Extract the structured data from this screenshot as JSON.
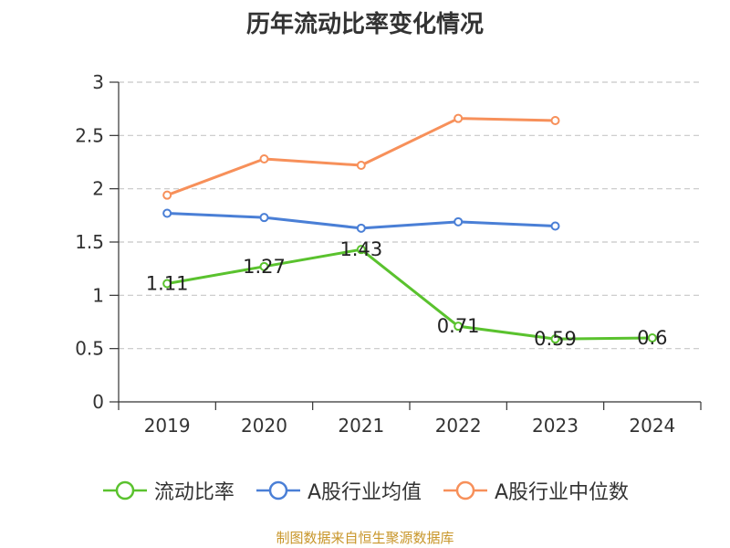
{
  "title": "历年流动比率变化情况",
  "source": "制图数据来自恒生聚源数据库",
  "chart_data": {
    "type": "line",
    "categories": [
      "2019",
      "2020",
      "2021",
      "2022",
      "2023",
      "2024"
    ],
    "ylim": [
      0,
      3
    ],
    "yticks": [
      0,
      0.5,
      1,
      1.5,
      2,
      2.5,
      3
    ],
    "ytick_labels": [
      "0",
      "0.5",
      "1",
      "1.5",
      "2",
      "2.5",
      "3"
    ],
    "grid": true,
    "legend_position": "bottom",
    "series": [
      {
        "name": "流动比率",
        "color": "#5ac22e",
        "values": [
          1.11,
          1.27,
          1.43,
          0.71,
          0.59,
          0.6
        ],
        "data_labels": [
          "1.11",
          "1.27",
          "1.43",
          "0.71",
          "0.59",
          "0.6"
        ]
      },
      {
        "name": "A股行业均值",
        "color": "#4a7fd6",
        "values": [
          1.77,
          1.73,
          1.63,
          1.69,
          1.65,
          null
        ]
      },
      {
        "name": "A股行业中位数",
        "color": "#f7905a",
        "values": [
          1.94,
          2.28,
          2.22,
          2.66,
          2.64,
          null
        ]
      }
    ]
  }
}
